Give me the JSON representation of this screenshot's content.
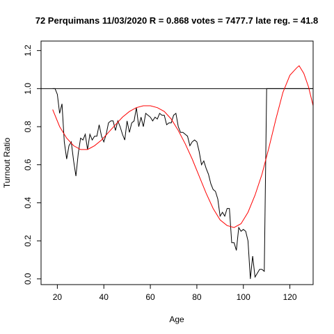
{
  "chart_data": {
    "type": "line",
    "title": "72 Perquimans 11/03/2020 R = 0.868 votes = 7477.7 late reg. = 41.8",
    "xlabel": "Age",
    "ylabel": "Turnout Ratio",
    "xlim": [
      13,
      130
    ],
    "ylim": [
      -0.03,
      1.25
    ],
    "x_ticks": [
      20,
      40,
      60,
      80,
      100,
      120
    ],
    "y_ticks": [
      0.0,
      0.2,
      0.4,
      0.6,
      0.8,
      1.0,
      1.2
    ],
    "x_tick_labels": [
      "20",
      "40",
      "60",
      "80",
      "100",
      "120"
    ],
    "y_tick_labels": [
      "0.0",
      "0.2",
      "0.4",
      "0.6",
      "0.8",
      "1.0",
      "1.2"
    ],
    "reference_line": {
      "y": 1.0,
      "color": "#000000"
    },
    "grid": false,
    "colors": {
      "observed": "#000000",
      "fit": "#ff0000"
    },
    "series": [
      {
        "key": "observed",
        "color": "#000000",
        "x": [
          18,
          19,
          20,
          21,
          22,
          23,
          24,
          25,
          26,
          27,
          28,
          29,
          30,
          31,
          32,
          33,
          34,
          35,
          36,
          37,
          38,
          39,
          40,
          41,
          42,
          43,
          44,
          45,
          46,
          47,
          48,
          49,
          50,
          51,
          52,
          53,
          54,
          55,
          56,
          57,
          58,
          59,
          60,
          61,
          62,
          63,
          64,
          65,
          66,
          67,
          68,
          69,
          70,
          71,
          72,
          73,
          74,
          75,
          76,
          77,
          78,
          79,
          80,
          81,
          82,
          83,
          84,
          85,
          86,
          87,
          88,
          89,
          90,
          91,
          92,
          93,
          94,
          95,
          96,
          97,
          98,
          99,
          100,
          101,
          102,
          103,
          104,
          105,
          106,
          107,
          108,
          109,
          110,
          111,
          112,
          113,
          114,
          115,
          116,
          117,
          118,
          119,
          120,
          121,
          122,
          123,
          124,
          125,
          126,
          127,
          128,
          129,
          130
        ],
        "y": [
          1.0,
          1.0,
          0.97,
          0.87,
          0.92,
          0.72,
          0.63,
          0.7,
          0.72,
          0.62,
          0.54,
          0.66,
          0.74,
          0.73,
          0.76,
          0.68,
          0.76,
          0.73,
          0.75,
          0.75,
          0.81,
          0.75,
          0.72,
          0.76,
          0.82,
          0.83,
          0.83,
          0.78,
          0.83,
          0.8,
          0.76,
          0.73,
          0.83,
          0.77,
          0.82,
          0.83,
          0.9,
          0.8,
          0.85,
          0.8,
          0.87,
          0.86,
          0.85,
          0.83,
          0.85,
          0.84,
          0.87,
          0.86,
          0.86,
          0.81,
          0.82,
          0.82,
          0.86,
          0.87,
          0.8,
          0.77,
          0.77,
          0.76,
          0.75,
          0.7,
          0.72,
          0.73,
          0.72,
          0.67,
          0.6,
          0.62,
          0.58,
          0.55,
          0.5,
          0.47,
          0.46,
          0.42,
          0.33,
          0.35,
          0.33,
          0.37,
          0.37,
          0.19,
          0.19,
          0.15,
          0.27,
          0.25,
          0.26,
          0.25,
          0.2,
          0.0,
          0.12,
          0.01,
          0.03,
          0.05,
          0.05,
          0.04,
          1.0,
          1.0,
          1.0,
          1.0,
          1.0,
          1.0,
          1.0,
          1.0,
          1.0,
          1.0,
          1.0,
          1.0,
          1.0,
          1.0,
          1.0,
          1.0,
          1.0,
          1.0,
          1.0,
          1.0,
          1.0
        ]
      },
      {
        "key": "fit",
        "color": "#ff0000",
        "x": [
          18,
          21,
          24,
          27,
          30,
          33,
          36,
          39,
          42,
          45,
          48,
          51,
          54,
          57,
          60,
          63,
          66,
          69,
          72,
          75,
          78,
          81,
          84,
          87,
          90,
          93,
          96,
          99,
          102,
          105,
          108,
          111,
          114,
          117,
          120,
          123,
          124,
          126,
          128,
          130
        ],
        "y": [
          0.89,
          0.8,
          0.74,
          0.7,
          0.68,
          0.68,
          0.7,
          0.73,
          0.77,
          0.81,
          0.85,
          0.88,
          0.9,
          0.91,
          0.91,
          0.9,
          0.88,
          0.84,
          0.78,
          0.71,
          0.63,
          0.54,
          0.45,
          0.37,
          0.31,
          0.28,
          0.27,
          0.29,
          0.35,
          0.44,
          0.55,
          0.69,
          0.84,
          0.98,
          1.07,
          1.11,
          1.12,
          1.08,
          1.01,
          0.91
        ]
      }
    ]
  }
}
